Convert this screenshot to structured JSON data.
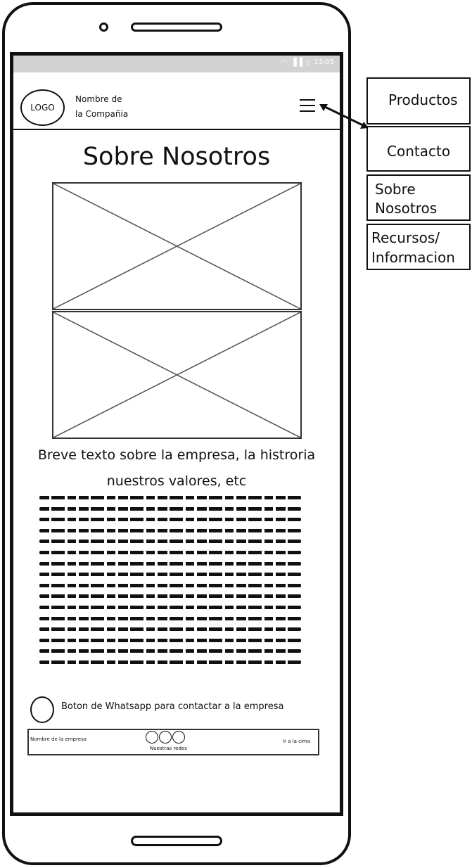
{
  "status_bar": {
    "time": "13:05",
    "wifi_icon": "wifi-icon",
    "signal_icon": "signal-icon",
    "battery_icon": "battery-icon"
  },
  "header": {
    "logo": "LOGO",
    "company_name": "Nombre de\nla Compañia",
    "menu_icon": "hamburger-icon"
  },
  "main": {
    "title": "Sobre Nosotros",
    "intro_text": "Breve texto sobre la empresa, la histroria nuestros valores, etc",
    "whatsapp_label": "Boton de Whatsapp para contactar a la empresa"
  },
  "footer": {
    "company": "Nombre de la empresa",
    "social_label": "Nuestras redes",
    "back_to_top": "Ir a la cima"
  },
  "side_menu": [
    {
      "label": "Productos"
    },
    {
      "label": "Contacto"
    },
    {
      "label": "Sobre\nNosotros"
    },
    {
      "label": "Recursos/\nInformacion"
    }
  ]
}
